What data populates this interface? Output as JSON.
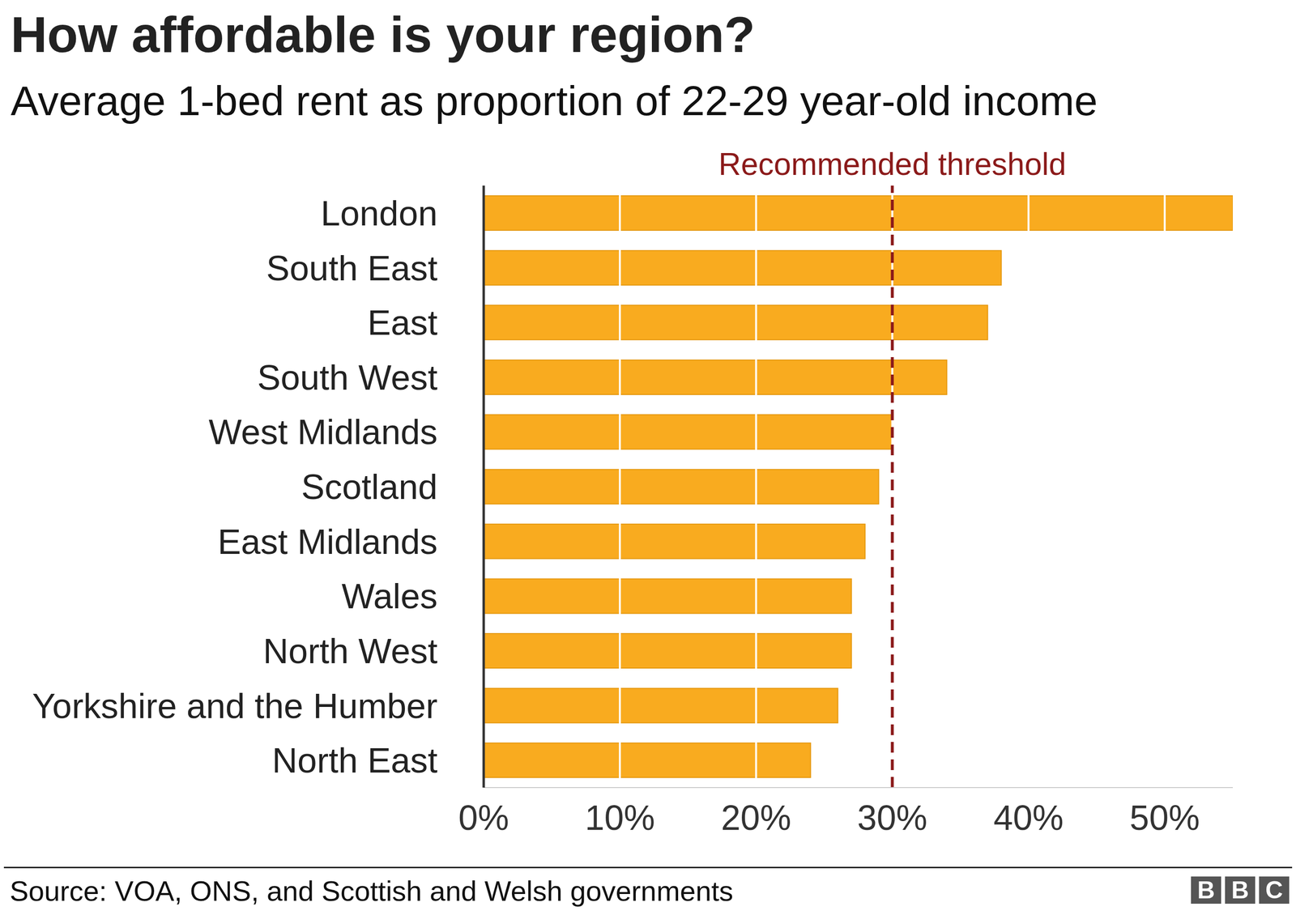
{
  "chart_data": {
    "type": "bar",
    "orientation": "horizontal",
    "title": "How affordable is your region?",
    "subtitle": "Average 1-bed rent as proportion of 22-29 year-old income",
    "categories": [
      "London",
      "South East",
      "East",
      "South West",
      "West Midlands",
      "Scotland",
      "East Midlands",
      "Wales",
      "North West",
      "Yorkshire and the Humber",
      "North East"
    ],
    "values": [
      55,
      38,
      37,
      34,
      30,
      29,
      28,
      27,
      27,
      26,
      24
    ],
    "color": "#f9ab1f",
    "xlim": [
      0,
      55
    ],
    "xticks": [
      {
        "value": 0,
        "label": "0%"
      },
      {
        "value": 10,
        "label": "10%"
      },
      {
        "value": 20,
        "label": "20%"
      },
      {
        "value": 30,
        "label": "30%"
      },
      {
        "value": 40,
        "label": "40%"
      },
      {
        "value": 50,
        "label": "50%"
      }
    ],
    "grid": true,
    "annotations": [
      {
        "text": "Recommended threshold",
        "x": 30,
        "color": "#8b1a1a",
        "line_style": "dashed"
      }
    ],
    "source": "Source: VOA, ONS, and Scottish and Welsh governments",
    "logo": "BBC"
  }
}
